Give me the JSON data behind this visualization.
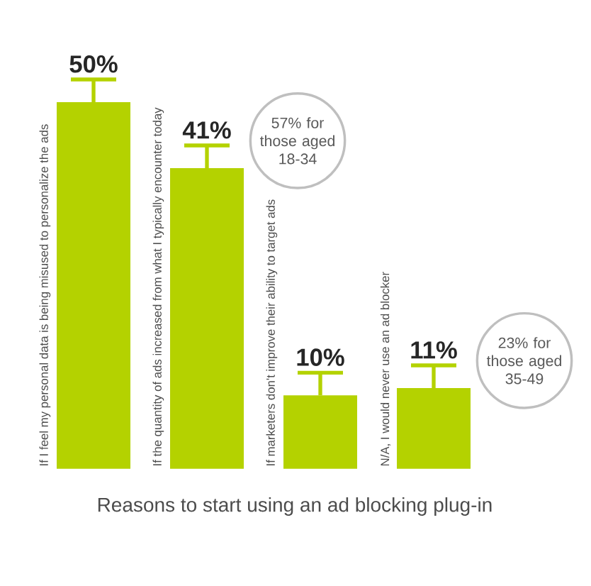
{
  "chart_data": {
    "type": "bar",
    "title": "Reasons to start using an ad blocking plug-in",
    "categories": [
      "If I feel my personal data is being misused to personalize the ads",
      "If the quantity of ads increased from what I typically encounter today",
      "If marketers don't improve their ability to target ads",
      "N/A, I would never use an ad blocker"
    ],
    "values": [
      50,
      41,
      10,
      11
    ],
    "color": "#b4d200",
    "value_labels": [
      "50%",
      "41%",
      "10%",
      "11%"
    ],
    "annotations": [
      "57% for those aged 18-34",
      "23% for those aged 35-49"
    ]
  }
}
